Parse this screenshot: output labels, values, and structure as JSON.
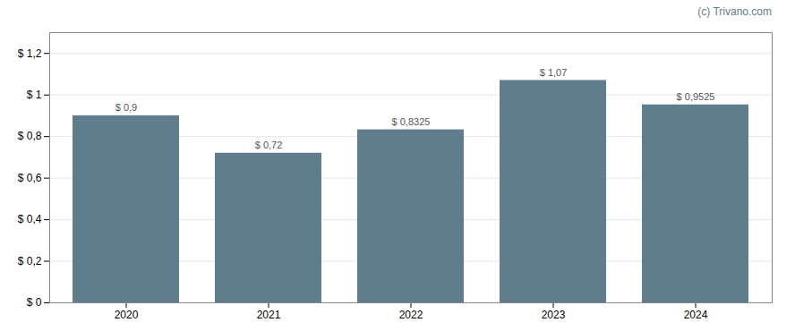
{
  "chart_data": {
    "type": "bar",
    "categories": [
      "2020",
      "2021",
      "2022",
      "2023",
      "2024"
    ],
    "values": [
      0.9,
      0.72,
      0.8325,
      1.07,
      0.9525
    ],
    "value_labels": [
      "$ 0,9",
      "$ 0,72",
      "$ 0,8325",
      "$ 1,07",
      "$ 0,9525"
    ],
    "data_labels": true,
    "color": "#5f7d8c",
    "ylim": [
      0,
      1.3
    ],
    "yticks": [
      {
        "value": 0,
        "label": "$ 0"
      },
      {
        "value": 0.2,
        "label": "$ 0,2"
      },
      {
        "value": 0.4,
        "label": "$ 0,4"
      },
      {
        "value": 0.6,
        "label": "$ 0,6"
      },
      {
        "value": 0.8,
        "label": "$ 0,8"
      },
      {
        "value": 1.0,
        "label": "$ 1"
      },
      {
        "value": 1.2,
        "label": "$ 1,2"
      }
    ],
    "grid": true,
    "annotations": [
      "(c) Trivano.com"
    ]
  }
}
